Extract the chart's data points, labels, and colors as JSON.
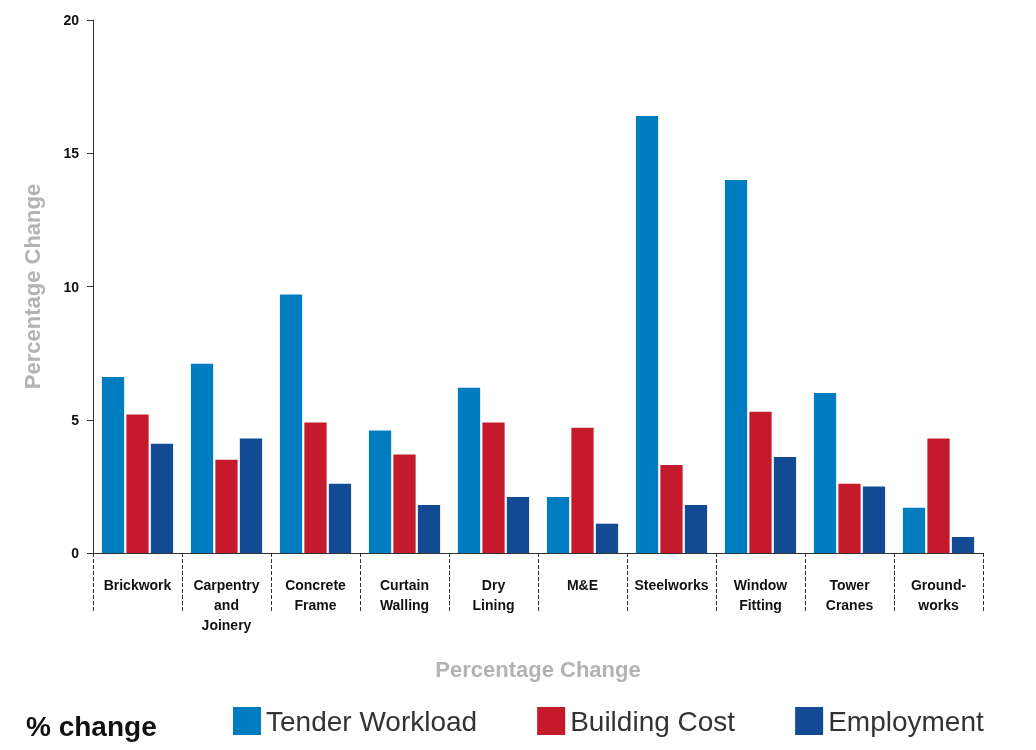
{
  "chart_data": {
    "type": "bar",
    "xlabel": "Percentage Change",
    "ylabel": "Percentage Change",
    "legend_title": "% change",
    "categories": [
      "Brickwork",
      "Carpentry and Joinery",
      "Concrete Frame",
      "Curtain Walling",
      "Dry Lining",
      "M&E",
      "Steelworks",
      "Window Fitting",
      "Tower Cranes",
      "Ground-works"
    ],
    "series": [
      {
        "name": "Tender Workload",
        "color": "#007dc1",
        "values": [
          6.6,
          7.1,
          9.7,
          4.6,
          6.2,
          2.1,
          16.4,
          14.0,
          6.0,
          1.7
        ]
      },
      {
        "name": "Building Cost",
        "color": "#c41a2b",
        "values": [
          5.2,
          3.5,
          4.9,
          3.7,
          4.9,
          4.7,
          3.3,
          5.3,
          2.6,
          4.3
        ]
      },
      {
        "name": "Employment",
        "color": "#124a93",
        "values": [
          4.1,
          4.3,
          2.6,
          1.8,
          2.1,
          1.1,
          1.8,
          3.6,
          2.5,
          0.6
        ]
      }
    ],
    "ylim": [
      0,
      20
    ],
    "yticks": [
      0,
      5,
      10,
      15,
      20
    ],
    "grid": false,
    "legend": "bottom"
  }
}
